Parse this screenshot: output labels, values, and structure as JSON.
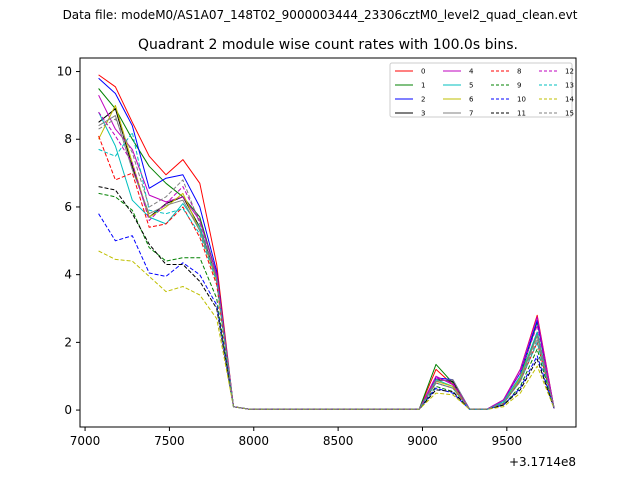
{
  "chart_data": {
    "type": "line",
    "suptitle": "Data file: modeM0/AS1A07_148T02_9000003444_23306cztM0_level2_quad_clean.evt",
    "title": "Quadrant 2 module wise count rates with 100.0s bins.",
    "xlabel": "",
    "ylabel": "",
    "offset_label": "+3.1714e8",
    "xlim": [
      6970,
      9910
    ],
    "ylim": [
      -0.5,
      10.4
    ],
    "xticks": [
      7000,
      7500,
      8000,
      8500,
      9000,
      9500
    ],
    "yticks": [
      0,
      2,
      4,
      6,
      8,
      10
    ],
    "legend_position": "upper-right",
    "x": [
      7080,
      7180,
      7280,
      7380,
      7480,
      7580,
      7680,
      7780,
      7880,
      7980,
      8080,
      8180,
      8280,
      8380,
      8480,
      8580,
      8680,
      8780,
      8880,
      8980,
      9080,
      9180,
      9280,
      9380,
      9480,
      9580,
      9680,
      9780
    ],
    "series": [
      {
        "name": "0",
        "color": "#ff0000",
        "dash": "solid",
        "values": [
          9.9,
          9.55,
          8.5,
          7.5,
          6.95,
          7.4,
          6.7,
          4.3,
          0.1,
          0.02,
          0.02,
          0.02,
          0.02,
          0.02,
          0.02,
          0.02,
          0.02,
          0.02,
          0.02,
          0.02,
          1.2,
          0.75,
          0.02,
          0.02,
          0.3,
          1.2,
          2.8,
          0.05
        ]
      },
      {
        "name": "1",
        "color": "#008000",
        "dash": "solid",
        "values": [
          9.5,
          8.9,
          8.0,
          7.2,
          6.7,
          6.3,
          5.7,
          4.0,
          0.1,
          0.02,
          0.02,
          0.02,
          0.02,
          0.02,
          0.02,
          0.02,
          0.02,
          0.02,
          0.02,
          0.02,
          1.35,
          0.8,
          0.02,
          0.02,
          0.25,
          1.0,
          2.6,
          0.05
        ]
      },
      {
        "name": "2",
        "color": "#0000ff",
        "dash": "solid",
        "values": [
          9.8,
          9.35,
          8.4,
          6.55,
          6.85,
          6.95,
          6.0,
          4.1,
          0.1,
          0.02,
          0.02,
          0.02,
          0.02,
          0.02,
          0.02,
          0.02,
          0.02,
          0.02,
          0.02,
          0.02,
          0.95,
          0.9,
          0.02,
          0.02,
          0.3,
          1.1,
          2.65,
          0.05
        ]
      },
      {
        "name": "3",
        "color": "#000000",
        "dash": "solid",
        "values": [
          8.5,
          8.9,
          7.2,
          5.7,
          6.1,
          6.3,
          5.4,
          3.9,
          0.1,
          0.02,
          0.02,
          0.02,
          0.02,
          0.02,
          0.02,
          0.02,
          0.02,
          0.02,
          0.02,
          0.02,
          0.9,
          0.85,
          0.02,
          0.02,
          0.2,
          0.9,
          2.3,
          0.05
        ]
      },
      {
        "name": "4",
        "color": "#bf00bf",
        "dash": "solid",
        "values": [
          9.3,
          8.3,
          7.7,
          6.35,
          6.15,
          6.3,
          5.6,
          4.0,
          0.1,
          0.02,
          0.02,
          0.02,
          0.02,
          0.02,
          0.02,
          0.02,
          0.02,
          0.02,
          0.02,
          0.02,
          1.0,
          0.75,
          0.02,
          0.02,
          0.3,
          1.2,
          2.75,
          0.05
        ]
      },
      {
        "name": "5",
        "color": "#00bfbf",
        "dash": "solid",
        "values": [
          8.8,
          7.8,
          6.2,
          5.7,
          5.5,
          6.1,
          5.4,
          3.8,
          0.1,
          0.02,
          0.02,
          0.02,
          0.02,
          0.02,
          0.02,
          0.02,
          0.02,
          0.02,
          0.02,
          0.02,
          0.9,
          0.7,
          0.02,
          0.02,
          0.25,
          1.0,
          2.3,
          0.05
        ]
      },
      {
        "name": "6",
        "color": "#bfbf00",
        "dash": "solid",
        "values": [
          8.0,
          9.0,
          7.3,
          5.7,
          6.0,
          6.4,
          5.3,
          3.8,
          0.1,
          0.02,
          0.02,
          0.02,
          0.02,
          0.02,
          0.02,
          0.02,
          0.02,
          0.02,
          0.02,
          0.02,
          0.85,
          0.7,
          0.02,
          0.02,
          0.2,
          0.95,
          2.2,
          0.05
        ]
      },
      {
        "name": "7",
        "color": "#808080",
        "dash": "solid",
        "values": [
          8.4,
          8.7,
          7.1,
          5.8,
          6.05,
          6.2,
          5.3,
          3.9,
          0.1,
          0.02,
          0.02,
          0.02,
          0.02,
          0.02,
          0.02,
          0.02,
          0.02,
          0.02,
          0.02,
          0.02,
          0.85,
          0.9,
          0.02,
          0.02,
          0.2,
          0.9,
          2.2,
          0.05
        ]
      },
      {
        "name": "8",
        "color": "#ff0000",
        "dash": "dashed",
        "values": [
          8.1,
          6.8,
          7.0,
          5.4,
          5.5,
          6.0,
          5.1,
          3.7,
          0.1,
          0.02,
          0.02,
          0.02,
          0.02,
          0.02,
          0.02,
          0.02,
          0.02,
          0.02,
          0.02,
          0.02,
          0.8,
          0.65,
          0.02,
          0.02,
          0.2,
          0.85,
          2.0,
          0.05
        ]
      },
      {
        "name": "9",
        "color": "#008000",
        "dash": "dashed",
        "values": [
          6.4,
          6.3,
          5.9,
          4.8,
          4.4,
          4.5,
          4.5,
          3.3,
          0.1,
          0.02,
          0.02,
          0.02,
          0.02,
          0.02,
          0.02,
          0.02,
          0.02,
          0.02,
          0.02,
          0.02,
          0.7,
          0.55,
          0.02,
          0.02,
          0.15,
          0.7,
          1.8,
          0.05
        ]
      },
      {
        "name": "10",
        "color": "#0000ff",
        "dash": "dashed",
        "values": [
          5.8,
          5.0,
          5.15,
          4.05,
          3.95,
          4.35,
          4.0,
          3.1,
          0.1,
          0.02,
          0.02,
          0.02,
          0.02,
          0.02,
          0.02,
          0.02,
          0.02,
          0.02,
          0.02,
          0.02,
          0.65,
          0.5,
          0.02,
          0.02,
          0.15,
          0.65,
          1.6,
          0.05
        ]
      },
      {
        "name": "11",
        "color": "#000000",
        "dash": "dashed",
        "values": [
          6.6,
          6.5,
          5.8,
          4.9,
          4.3,
          4.3,
          3.8,
          3.0,
          0.1,
          0.02,
          0.02,
          0.02,
          0.02,
          0.02,
          0.02,
          0.02,
          0.02,
          0.02,
          0.02,
          0.02,
          0.6,
          0.55,
          0.02,
          0.02,
          0.15,
          0.6,
          1.5,
          0.05
        ]
      },
      {
        "name": "12",
        "color": "#bf00bf",
        "dash": "dashed",
        "values": [
          8.8,
          8.1,
          7.3,
          5.6,
          6.1,
          6.6,
          5.6,
          4.0,
          0.1,
          0.02,
          0.02,
          0.02,
          0.02,
          0.02,
          0.02,
          0.02,
          0.02,
          0.02,
          0.02,
          0.02,
          0.95,
          0.8,
          0.02,
          0.02,
          0.3,
          1.1,
          2.5,
          0.05
        ]
      },
      {
        "name": "13",
        "color": "#00bfbf",
        "dash": "dashed",
        "values": [
          7.7,
          7.5,
          8.2,
          5.9,
          5.8,
          5.95,
          5.2,
          3.8,
          0.1,
          0.02,
          0.02,
          0.02,
          0.02,
          0.02,
          0.02,
          0.02,
          0.02,
          0.02,
          0.02,
          0.02,
          0.8,
          0.65,
          0.02,
          0.02,
          0.2,
          0.85,
          2.0,
          0.05
        ]
      },
      {
        "name": "14",
        "color": "#bfbf00",
        "dash": "dashed",
        "values": [
          4.7,
          4.45,
          4.4,
          3.95,
          3.5,
          3.65,
          3.4,
          2.7,
          0.1,
          0.02,
          0.02,
          0.02,
          0.02,
          0.02,
          0.02,
          0.02,
          0.02,
          0.02,
          0.02,
          0.02,
          0.5,
          0.45,
          0.02,
          0.02,
          0.1,
          0.5,
          1.3,
          0.05
        ]
      },
      {
        "name": "15",
        "color": "#808080",
        "dash": "dashed",
        "values": [
          8.3,
          8.6,
          7.6,
          6.0,
          6.3,
          6.8,
          5.5,
          3.9,
          0.1,
          0.02,
          0.02,
          0.02,
          0.02,
          0.02,
          0.02,
          0.02,
          0.02,
          0.02,
          0.02,
          0.02,
          0.8,
          0.65,
          0.02,
          0.02,
          0.2,
          0.85,
          2.1,
          0.05
        ]
      }
    ]
  }
}
